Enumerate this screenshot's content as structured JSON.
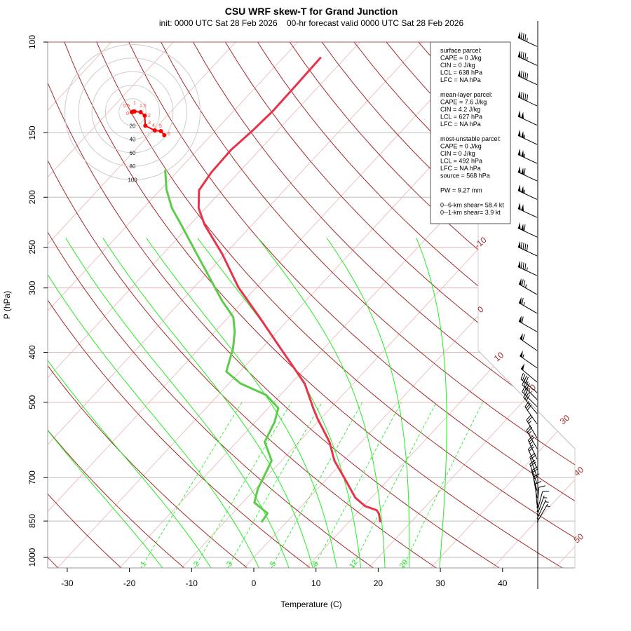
{
  "chart_data": {
    "type": "skew-t",
    "title": "CSU WRF skew-T for Grand Junction",
    "subtitle": "init: 0000 UTC Sat 28 Feb 2026    00-hr forecast valid 0000 UTC Sat 28 Feb 2026",
    "xlabel": "Temperature (C)",
    "ylabel": "P (hPa)",
    "xlim": [
      -33,
      52
    ],
    "ylim_hPa": [
      1050,
      100
    ],
    "y_scale": "log",
    "x_ticks": [
      "-30",
      "-20",
      "-10",
      "0",
      "10",
      "20",
      "30",
      "40"
    ],
    "y_ticks": [
      "100",
      "150",
      "200",
      "250",
      "300",
      "400",
      "500",
      "700",
      "850",
      "1000"
    ],
    "isobars_gray": [
      150,
      200,
      700,
      850,
      1000
    ],
    "isobars_pink": [
      250,
      300,
      400,
      500
    ],
    "isotherm_labels": [
      "-10",
      "0",
      "10",
      "20",
      "30",
      "40",
      "50"
    ],
    "mixing_ratio_labels": [
      "1",
      "2",
      "3",
      "5",
      "8",
      "12",
      "20"
    ],
    "colors": {
      "temperature": "#e8334a",
      "dewpoint": "#5ccc4a",
      "dry_adiabat": "#a52a2a",
      "isotherm": "#e8b4b4",
      "moist_adiabat": "#22ee22",
      "mixing_ratio": "#22ee22",
      "hodograph": "#ff0000"
    },
    "temperature": {
      "pressure": [
        107,
        123,
        136,
        148,
        162,
        179,
        194,
        210,
        226,
        258,
        299,
        342,
        388,
        436,
        460,
        515,
        538,
        597,
        649,
        704,
        766,
        795,
        810,
        823,
        855
      ],
      "values": [
        -64.0,
        -63.8,
        -63.7,
        -64.0,
        -64.6,
        -64.4,
        -63.7,
        -61.1,
        -57.7,
        -50.4,
        -42.9,
        -35.0,
        -27.7,
        -20.9,
        -17.8,
        -12.6,
        -10.5,
        -5.1,
        -1.5,
        2.9,
        7.4,
        10.2,
        12.7,
        13.6,
        15.1
      ]
    },
    "dewpoint": {
      "pressure": [
        177,
        193,
        210,
        228,
        256,
        284,
        317,
        342,
        365,
        393,
        436,
        460,
        472,
        484,
        513,
        546,
        597,
        649,
        682,
        736,
        783,
        821,
        855
      ],
      "values": [
        -72.2,
        -69.1,
        -65.4,
        -61.0,
        -54.9,
        -49.4,
        -43.6,
        -39.2,
        -36.8,
        -34.6,
        -32.2,
        -28.1,
        -25.2,
        -22.3,
        -18.4,
        -16.9,
        -15.5,
        -11.6,
        -10.8,
        -9.6,
        -8.1,
        -4.4,
        -4.0
      ]
    },
    "winds": {
      "pressure": [
        102,
        111,
        121,
        133,
        145,
        158,
        172,
        186,
        202,
        219,
        239,
        260,
        284,
        309,
        336,
        365,
        397,
        429,
        457,
        479,
        494,
        510,
        526,
        551,
        587,
        615,
        645,
        672,
        698,
        720,
        743,
        766,
        791,
        803,
        816,
        829,
        842,
        855
      ],
      "speed_kt": [
        85,
        85,
        90,
        90,
        100,
        105,
        105,
        110,
        105,
        100,
        110,
        90,
        85,
        75,
        65,
        60,
        60,
        55,
        50,
        40,
        40,
        35,
        30,
        30,
        25,
        25,
        25,
        20,
        20,
        20,
        20,
        15,
        10,
        10,
        10,
        5,
        5,
        5
      ],
      "direction_deg": [
        295,
        295,
        295,
        295,
        295,
        295,
        295,
        295,
        295,
        295,
        295,
        295,
        295,
        300,
        300,
        300,
        305,
        305,
        310,
        310,
        315,
        315,
        320,
        325,
        330,
        330,
        335,
        335,
        340,
        340,
        345,
        350,
        355,
        5,
        15,
        20,
        25,
        30
      ]
    },
    "hodograph": {
      "ring_labels": [
        "20",
        "40",
        "60",
        "80",
        "100"
      ],
      "points": [
        {
          "label": "0",
          "u": -1,
          "v": 0
        },
        {
          "label": "0.5",
          "u": 1,
          "v": 1
        },
        {
          "label": "1",
          "u": 3,
          "v": 1
        },
        {
          "label": "1.5",
          "u": 12,
          "v": 0
        },
        {
          "label": "2",
          "u": 18,
          "v": -5
        },
        {
          "label": "3",
          "u": 19,
          "v": -20
        },
        {
          "label": "4",
          "u": 33,
          "v": -27
        },
        {
          "label": "5",
          "u": 42,
          "v": -28
        },
        {
          "label": "6",
          "u": 47,
          "v": -34
        }
      ]
    }
  },
  "legend": {
    "lines": [
      "surface parcel:",
      "CAPE = 0 J/kg",
      "CIN = 0 J/kg",
      "LCL = 638 hPa",
      "LFC = NA hPa",
      "",
      "mean-layer parcel:",
      "CAPE = 7.6 J/kg",
      "CIN = 4.2 J/kg",
      "LCL = 627 hPa",
      "LFC = NA hPa",
      "",
      "most-unstable parcel:",
      "CAPE = 0 J/kg",
      "CIN = 0 J/kg",
      "LCL = 492 hPa",
      "LFC = NA hPa",
      "source = 568 hPa",
      "",
      "PW =  9.27 mm",
      "",
      "0--6-km shear= 58.4 kt",
      "0--1-km shear= 3.9 kt"
    ]
  }
}
